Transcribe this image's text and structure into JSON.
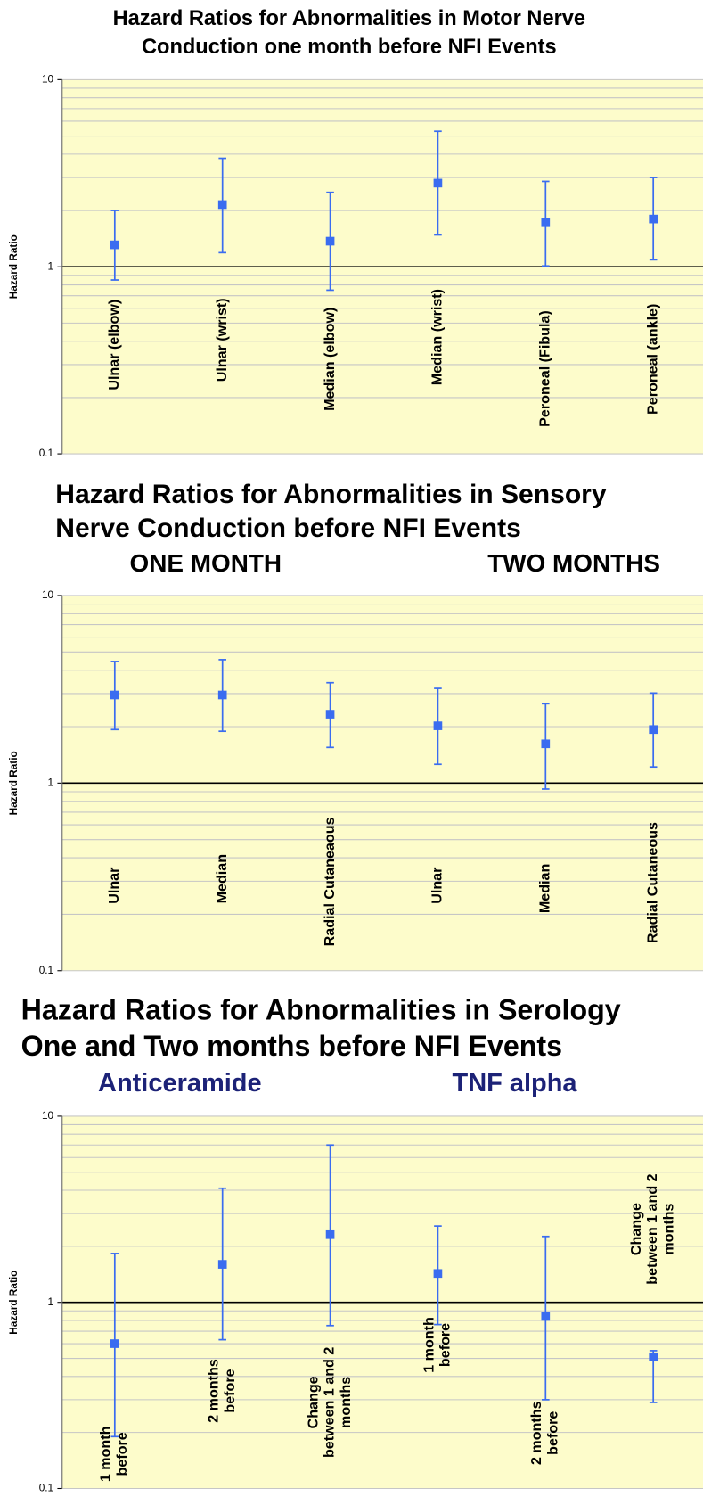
{
  "chart_data": [
    {
      "type": "errorbar",
      "title": [
        "Hazard Ratios for Abnormalities in Motor Nerve",
        "Conduction one month before NFI Events"
      ],
      "y_label": "Hazard Ratio",
      "log_y": true,
      "grid": true,
      "ylim": [
        0.1,
        10
      ],
      "yticks": [
        0.1,
        1,
        10
      ],
      "minor_yticks": [
        0.2,
        0.3,
        0.4,
        0.5,
        0.6,
        0.7,
        0.8,
        0.9,
        2,
        3,
        4,
        5,
        6,
        7,
        8,
        9
      ],
      "categories": [
        "Ulnar (elbow)",
        "Ulnar (wrist)",
        "Median (elbow)",
        "Median (wrist)",
        "Peroneal (Fibula)",
        "Peroneal (ankle)"
      ],
      "series": [
        {
          "color": "#3a6cf0",
          "values": [
            1.31,
            2.15,
            1.37,
            2.8,
            1.72,
            1.8
          ],
          "lower": [
            0.85,
            1.19,
            0.75,
            1.48,
            1.01,
            1.09
          ],
          "upper": [
            2.0,
            3.8,
            2.5,
            5.3,
            2.86,
            3.0
          ]
        }
      ]
    },
    {
      "type": "errorbar",
      "title": [
        "Hazard Ratios for Abnormalities in Sensory",
        "Nerve Conduction before NFI Events"
      ],
      "group_labels": [
        "ONE MONTH",
        "TWO MONTHS"
      ],
      "group_color": "#000000",
      "y_label": "Hazard Ratio",
      "log_y": true,
      "grid": true,
      "ylim": [
        0.1,
        10
      ],
      "yticks": [
        0.1,
        1,
        10
      ],
      "minor_yticks": [
        0.2,
        0.3,
        0.4,
        0.5,
        0.6,
        0.7,
        0.8,
        0.9,
        2,
        3,
        4,
        5,
        6,
        7,
        8,
        9
      ],
      "categories": [
        "Ulnar",
        "Median",
        "Radial Cutaneaous",
        "Ulnar",
        "Median",
        "Radial Cutaneous"
      ],
      "series": [
        {
          "color": "#3a6cf0",
          "values": [
            2.95,
            2.95,
            2.33,
            2.02,
            1.62,
            1.93
          ],
          "lower": [
            1.93,
            1.89,
            1.55,
            1.26,
            0.93,
            1.22
          ],
          "upper": [
            4.45,
            4.55,
            3.43,
            3.2,
            2.65,
            3.02
          ]
        }
      ]
    },
    {
      "type": "errorbar",
      "title": [
        "Hazard Ratios for Abnormalities in Serology",
        "One and Two months before NFI Events"
      ],
      "group_labels": [
        "Anticeramide",
        "TNF alpha"
      ],
      "group_color": "#1c2277",
      "y_label": "Hazard Ratio",
      "log_y": true,
      "grid": true,
      "ylim": [
        0.1,
        10
      ],
      "yticks": [
        0.1,
        1,
        10
      ],
      "minor_yticks": [
        0.2,
        0.3,
        0.4,
        0.5,
        0.6,
        0.7,
        0.8,
        0.9,
        2,
        3,
        4,
        5,
        6,
        7,
        8,
        9
      ],
      "categories": [
        [
          "1 month",
          "before"
        ],
        [
          "2 months",
          "before"
        ],
        [
          "Change",
          "between 1 and 2",
          "months"
        ],
        [
          "1 month",
          "before"
        ],
        [
          "2 months",
          "before"
        ],
        [
          "Change",
          "between 1 and 2",
          "months"
        ]
      ],
      "series": [
        {
          "color": "#3a6cf0",
          "values": [
            0.6,
            1.6,
            2.31,
            1.43,
            0.84,
            0.51
          ],
          "lower": [
            0.19,
            0.63,
            0.75,
            0.76,
            0.3,
            0.29
          ],
          "upper": [
            1.83,
            4.1,
            7.0,
            2.57,
            2.26,
            0.55
          ]
        }
      ]
    }
  ]
}
